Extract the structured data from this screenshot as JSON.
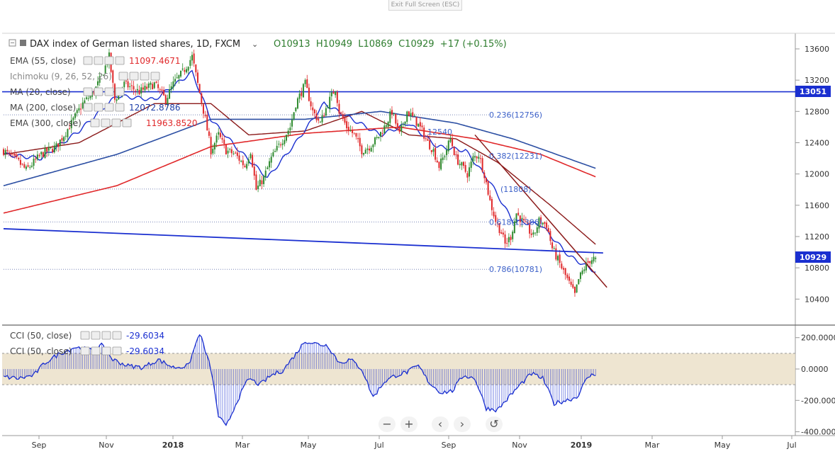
{
  "toolbar": {
    "exit_label": "Exit Full Screen (ESC)"
  },
  "header": {
    "title": "DAX index of German listed shares, 1D, FXCM",
    "ohlc": "O10913  H10949  L10869  C10929  +17 (+0.15%)"
  },
  "indicators": [
    {
      "label": "EMA (55, close)",
      "value": "11097.4671",
      "color": "#e0282a"
    },
    {
      "label": "Ichimoku (9, 26, 52, 26)",
      "value": "",
      "color": "#999999"
    },
    {
      "label": "MA (20, close)",
      "value": "",
      "color": "#999999"
    },
    {
      "label": "MA (200, close)",
      "value": "12072.8786",
      "color": "#1d3ea8"
    },
    {
      "label": "EMA (300, close)",
      "value": "11963.8520",
      "color": "#e0282a"
    }
  ],
  "price_axis": {
    "ticks": [
      "13600",
      "13200",
      "12800",
      "12400",
      "12000",
      "11600",
      "11200",
      "10800",
      "10400"
    ],
    "badge_level": "13051",
    "badge_last": "10929"
  },
  "cci_panel": {
    "legends": [
      {
        "label": "CCI (50, close)",
        "value": "-29.6034"
      },
      {
        "label": "CCI (50, close)",
        "value": "-29.6034"
      }
    ],
    "ticks": [
      "200.0000",
      "0.0000",
      "-200.0000",
      "-400.0000"
    ]
  },
  "time_axis": {
    "labels": [
      "Sep",
      "Nov",
      "2018",
      "Mar",
      "May",
      "Jul",
      "Sep",
      "Nov",
      "2019",
      "Mar",
      "May",
      "Jul"
    ]
  },
  "fib_labels": [
    "0.236(12756)",
    "0.382(12231)",
    "(11808)",
    "0.618(11386)",
    "0.786(10781)",
    "12540"
  ],
  "colors": {
    "up": "#2e8b2e",
    "down": "#e0282a",
    "ma20": "#1a2fd0",
    "ema55": "#8b1a1a",
    "ma200": "#2c4fa3",
    "ema300": "#e0282a",
    "hline": "#1a2fd0",
    "cci": "#1a2fd0",
    "band": "#e8dcc2"
  },
  "chart_data": {
    "type": "candlestick",
    "title": "DAX index of German listed shares, 1D, FXCM",
    "x_labels": [
      "Sep",
      "Nov",
      "2018",
      "Mar",
      "May",
      "Jul",
      "Sep",
      "Nov",
      "2019",
      "Mar",
      "May",
      "Jul"
    ],
    "last_bar": {
      "open": 10913,
      "high": 10949,
      "low": 10869,
      "close": 10929,
      "change": "+17 (+0.15%)"
    },
    "ylim": [
      10100,
      13850
    ],
    "horizontal_level": 13051,
    "close_path": [
      [
        0,
        12300
      ],
      [
        8,
        12150
      ],
      [
        12,
        12050
      ],
      [
        20,
        12250
      ],
      [
        28,
        12350
      ],
      [
        36,
        12650
      ],
      [
        42,
        12900
      ],
      [
        48,
        13050
      ],
      [
        52,
        13250
      ],
      [
        56,
        13500
      ],
      [
        59,
        12950
      ],
      [
        64,
        13150
      ],
      [
        72,
        13050
      ],
      [
        80,
        13150
      ],
      [
        86,
        12950
      ],
      [
        90,
        13150
      ],
      [
        95,
        13300
      ],
      [
        100,
        13500
      ],
      [
        103,
        13150
      ],
      [
        107,
        12700
      ],
      [
        110,
        12300
      ],
      [
        114,
        12500
      ],
      [
        118,
        12300
      ],
      [
        123,
        12250
      ],
      [
        128,
        12100
      ],
      [
        131,
        12300
      ],
      [
        134,
        11800
      ],
      [
        138,
        11950
      ],
      [
        142,
        12200
      ],
      [
        147,
        12400
      ],
      [
        152,
        12600
      ],
      [
        155,
        12900
      ],
      [
        160,
        13150
      ],
      [
        164,
        12800
      ],
      [
        168,
        12650
      ],
      [
        172,
        12900
      ],
      [
        176,
        13100
      ],
      [
        178,
        12800
      ],
      [
        182,
        12600
      ],
      [
        186,
        12500
      ],
      [
        190,
        12300
      ],
      [
        194,
        12350
      ],
      [
        198,
        12450
      ],
      [
        202,
        12600
      ],
      [
        206,
        12800
      ],
      [
        210,
        12500
      ],
      [
        214,
        12800
      ],
      [
        218,
        12700
      ],
      [
        222,
        12550
      ],
      [
        225,
        12400
      ],
      [
        228,
        12300
      ],
      [
        231,
        12100
      ],
      [
        234,
        12250
      ],
      [
        237,
        12450
      ],
      [
        240,
        12200
      ],
      [
        243,
        12100
      ],
      [
        246,
        12000
      ],
      [
        249,
        12200
      ],
      [
        252,
        12250
      ],
      [
        255,
        12000
      ],
      [
        258,
        11650
      ],
      [
        261,
        11400
      ],
      [
        264,
        11250
      ],
      [
        266,
        11100
      ],
      [
        269,
        11200
      ],
      [
        272,
        11500
      ],
      [
        275,
        11400
      ],
      [
        278,
        11300
      ],
      [
        281,
        11200
      ],
      [
        284,
        11400
      ],
      [
        288,
        11350
      ],
      [
        291,
        11050
      ],
      [
        294,
        10900
      ],
      [
        297,
        10750
      ],
      [
        300,
        10600
      ],
      [
        303,
        10450
      ],
      [
        305,
        10650
      ],
      [
        308,
        10800
      ],
      [
        311,
        10900
      ],
      [
        314,
        10929
      ]
    ],
    "series": [
      {
        "name": "EMA (55, close)",
        "values": [
          [
            0,
            12250
          ],
          [
            40,
            12400
          ],
          [
            80,
            12900
          ],
          [
            110,
            12900
          ],
          [
            130,
            12500
          ],
          [
            160,
            12550
          ],
          [
            190,
            12800
          ],
          [
            215,
            12500
          ],
          [
            240,
            12450
          ],
          [
            262,
            12150
          ],
          [
            290,
            11600
          ],
          [
            314,
            11100
          ]
        ]
      },
      {
        "name": "MA (20, close)",
        "values": [
          [
            0,
            12250
          ],
          [
            20,
            12200
          ],
          [
            40,
            12550
          ],
          [
            60,
            13000
          ],
          [
            80,
            12950
          ],
          [
            100,
            13300
          ],
          [
            110,
            12700
          ],
          [
            125,
            12300
          ],
          [
            140,
            11950
          ],
          [
            155,
            12400
          ],
          [
            170,
            12900
          ],
          [
            185,
            12700
          ],
          [
            200,
            12500
          ],
          [
            215,
            12650
          ],
          [
            230,
            12350
          ],
          [
            245,
            12300
          ],
          [
            258,
            11900
          ],
          [
            270,
            11400
          ],
          [
            285,
            11350
          ],
          [
            300,
            10950
          ],
          [
            314,
            10750
          ]
        ]
      },
      {
        "name": "MA (200, close)",
        "values": [
          [
            0,
            11850
          ],
          [
            60,
            12250
          ],
          [
            110,
            12700
          ],
          [
            160,
            12700
          ],
          [
            200,
            12800
          ],
          [
            240,
            12650
          ],
          [
            270,
            12450
          ],
          [
            314,
            12073
          ]
        ]
      },
      {
        "name": "EMA (300, close)",
        "values": [
          [
            0,
            11500
          ],
          [
            60,
            11850
          ],
          [
            110,
            12350
          ],
          [
            160,
            12520
          ],
          [
            210,
            12600
          ],
          [
            250,
            12450
          ],
          [
            285,
            12250
          ],
          [
            314,
            11964
          ]
        ]
      }
    ],
    "trendlines": [
      {
        "from": [
          0,
          11300
        ],
        "to": [
          318,
          10990
        ]
      },
      {
        "from": [
          250,
          12500
        ],
        "to": [
          320,
          10550
        ]
      }
    ],
    "fibonacci": [
      {
        "ratio": "0.236",
        "level": 12756
      },
      {
        "ratio": "0.382",
        "level": 12231
      },
      {
        "ratio": "0.5",
        "level": 11808
      },
      {
        "ratio": "0.618",
        "level": 11386
      },
      {
        "ratio": "0.786",
        "level": 10781
      }
    ],
    "cci": {
      "ylim": [
        -400,
        250
      ],
      "band": [
        -100,
        100
      ],
      "values": [
        [
          0,
          -50
        ],
        [
          8,
          -60
        ],
        [
          16,
          -40
        ],
        [
          22,
          40
        ],
        [
          30,
          100
        ],
        [
          38,
          140
        ],
        [
          46,
          120
        ],
        [
          52,
          150
        ],
        [
          58,
          60
        ],
        [
          66,
          20
        ],
        [
          74,
          10
        ],
        [
          82,
          60
        ],
        [
          90,
          10
        ],
        [
          98,
          20
        ],
        [
          104,
          230
        ],
        [
          110,
          0
        ],
        [
          114,
          -300
        ],
        [
          118,
          -370
        ],
        [
          124,
          -200
        ],
        [
          130,
          -60
        ],
        [
          136,
          -100
        ],
        [
          142,
          -40
        ],
        [
          148,
          -10
        ],
        [
          154,
          80
        ],
        [
          160,
          180
        ],
        [
          166,
          160
        ],
        [
          172,
          150
        ],
        [
          178,
          40
        ],
        [
          184,
          60
        ],
        [
          190,
          0
        ],
        [
          196,
          -180
        ],
        [
          202,
          -80
        ],
        [
          208,
          -40
        ],
        [
          214,
          -20
        ],
        [
          220,
          20
        ],
        [
          226,
          -90
        ],
        [
          232,
          -150
        ],
        [
          238,
          -140
        ],
        [
          244,
          -40
        ],
        [
          250,
          -60
        ],
        [
          256,
          -250
        ],
        [
          262,
          -260
        ],
        [
          268,
          -180
        ],
        [
          274,
          -100
        ],
        [
          280,
          -30
        ],
        [
          286,
          -60
        ],
        [
          292,
          -220
        ],
        [
          298,
          -200
        ],
        [
          304,
          -180
        ],
        [
          310,
          -50
        ],
        [
          314,
          -30
        ]
      ]
    }
  }
}
